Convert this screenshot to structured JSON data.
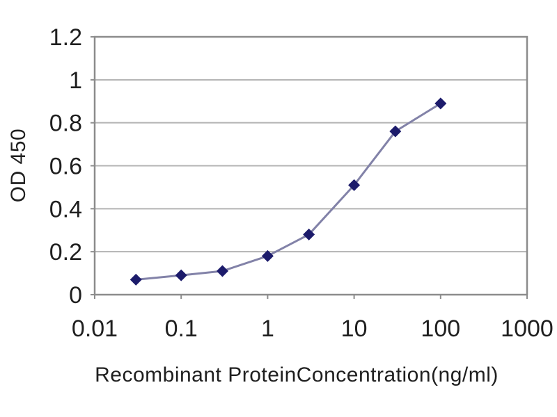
{
  "chart_data": {
    "type": "line",
    "title": "",
    "xlabel": "Recombinant ProteinConcentration(ng/ml)",
    "ylabel": "OD 450",
    "x_scale": "log",
    "xlim": [
      0.01,
      1000
    ],
    "ylim": [
      0,
      1.2
    ],
    "x_ticks": [
      0.01,
      0.1,
      1,
      10,
      100,
      1000
    ],
    "x_tick_labels": [
      "0.01",
      "0.1",
      "1",
      "10",
      "100",
      "1000"
    ],
    "y_ticks": [
      0,
      0.2,
      0.4,
      0.6,
      0.8,
      1,
      1.2
    ],
    "y_tick_labels": [
      "0",
      "0.2",
      "0.4",
      "0.6",
      "0.8",
      "1",
      "1.2"
    ],
    "grid": "horizontal",
    "legend": "none",
    "series": [
      {
        "name": "OD450",
        "marker": "diamond",
        "x": [
          0.03,
          0.1,
          0.3,
          1,
          3,
          10,
          30,
          100
        ],
        "y": [
          0.07,
          0.09,
          0.11,
          0.18,
          0.28,
          0.51,
          0.76,
          0.89
        ]
      }
    ],
    "colors": {
      "line": "#8282a8",
      "marker": "#1c1b6b",
      "grid": "#b3b3b3",
      "border": "#8c8c8c",
      "tick": "#8c8c8c",
      "text": "#1f1f1f",
      "background": "#ffffff"
    }
  }
}
